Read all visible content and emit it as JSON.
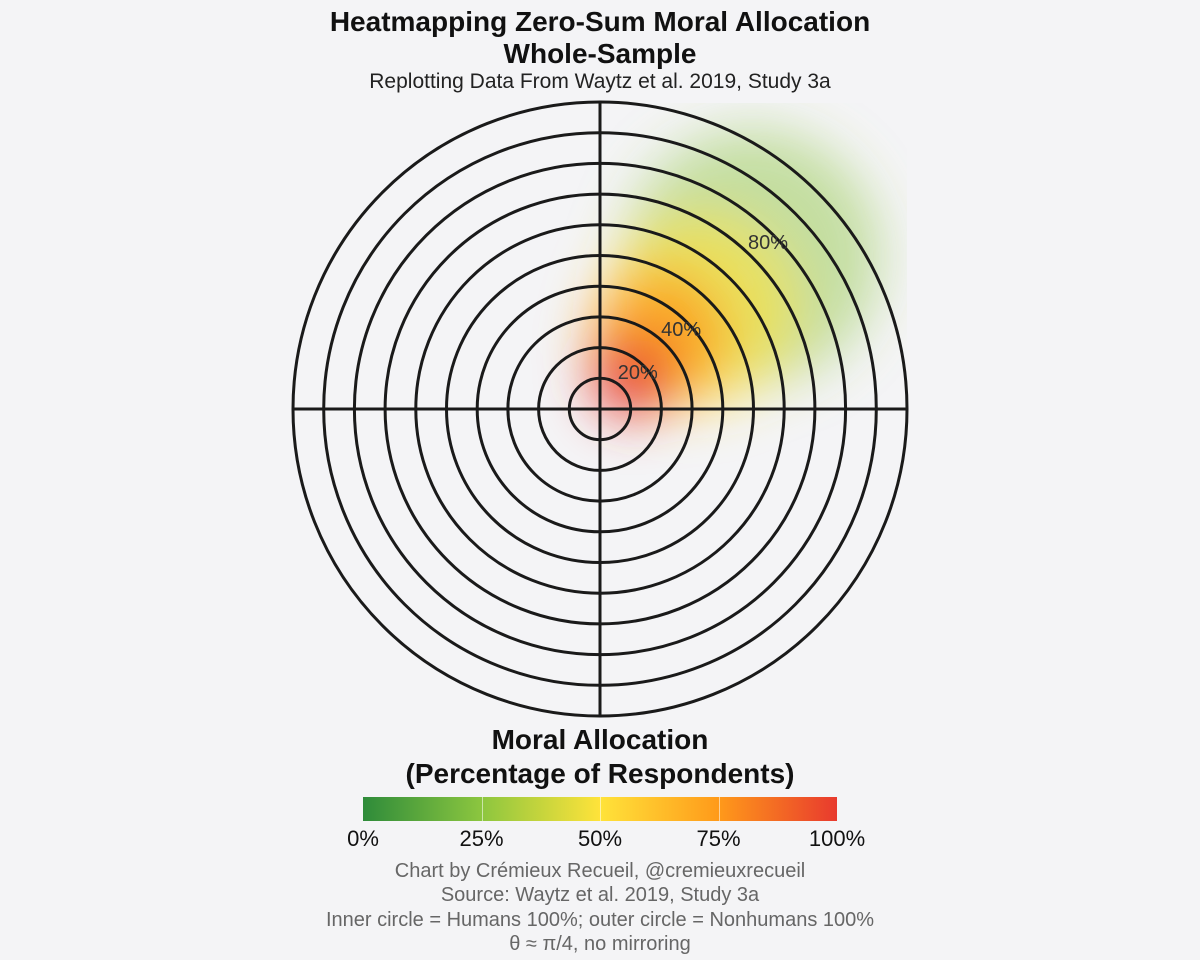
{
  "header": {
    "title_line1": "Heatmapping Zero-Sum Moral Allocation",
    "title_line2": "Whole-Sample",
    "subtitle": "Replotting Data From Waytz et al. 2019, Study 3a"
  },
  "chart_data": {
    "type": "heatmap",
    "coordinate_system": "polar",
    "rings": 10,
    "ring_labels": [
      {
        "text": "20%",
        "ring": 2
      },
      {
        "text": "40%",
        "ring": 4
      },
      {
        "text": "80%",
        "ring": 8
      }
    ],
    "density_hotspots": [
      {
        "angle_deg": 45,
        "ring": 1.5,
        "intensity": 1.0
      },
      {
        "angle_deg": 50,
        "ring": 3.0,
        "intensity": 0.75
      },
      {
        "angle_deg": 45,
        "ring": 4.5,
        "intensity": 0.5
      },
      {
        "angle_deg": 45,
        "ring": 7.0,
        "intensity": 0.2
      }
    ],
    "legend": {
      "title_line1": "Moral Allocation",
      "title_line2": "(Percentage of Respondents)",
      "ticks": [
        "0%",
        "25%",
        "50%",
        "75%",
        "100%"
      ],
      "tick_values": [
        0,
        25,
        50,
        75,
        100
      ],
      "colors": [
        "#2e8b3a",
        "#8cc63f",
        "#ffe33a",
        "#ff9a1a",
        "#e83a2e"
      ],
      "placement": "bottom"
    }
  },
  "caption": {
    "line1": "Chart by Crémieux Recueil, @cremieuxrecueil",
    "line2": "Source: Waytz et al. 2019, Study 3a",
    "line3": "Inner circle = Humans 100%; outer circle = Nonhumans 100%",
    "line4": "θ ≈ π/4, no mirroring"
  }
}
